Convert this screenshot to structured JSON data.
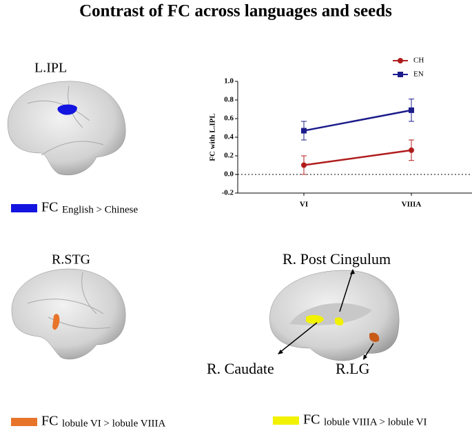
{
  "chart_data": {
    "type": "line",
    "y_label": "FC with L.IPL",
    "categories": [
      "VI",
      "VIIIA"
    ],
    "series": [
      {
        "name": "CH",
        "color": "#b01c1c",
        "marker": "circle",
        "values": [
          0.1,
          0.26
        ],
        "errors": [
          0.1,
          0.11
        ]
      },
      {
        "name": "EN",
        "color": "#1c1c8c",
        "marker": "square",
        "values": [
          0.47,
          0.69
        ],
        "errors": [
          0.1,
          0.12
        ]
      }
    ],
    "ylim": [
      -0.2,
      1.0
    ],
    "yticks": [
      -0.2,
      {
        "value": 0,
        "label": "0.0"
      },
      0.2,
      0.4,
      0.6,
      0.8,
      {
        "value": 1,
        "label": "1.0"
      }
    ],
    "reference_line": 0,
    "legend": "upper right"
  },
  "figure": {
    "title": "Contrast of FC across languages and seeds",
    "panels": [
      "L.IPL",
      "R.STG"
    ],
    "regions": [
      "R. Post Cingulum",
      "R. Caudate",
      "R.LG"
    ],
    "legend_items": [
      {
        "label": "FC",
        "detail": "English > Chinese",
        "color": "#1414e0"
      },
      {
        "label": "FC",
        "detail": "lobule VI > lobule VIIIA",
        "color": "#e8742a"
      },
      {
        "label": "FC",
        "detail": "lobule VIIIA > lobule VI",
        "color": "#f2f200"
      }
    ]
  }
}
